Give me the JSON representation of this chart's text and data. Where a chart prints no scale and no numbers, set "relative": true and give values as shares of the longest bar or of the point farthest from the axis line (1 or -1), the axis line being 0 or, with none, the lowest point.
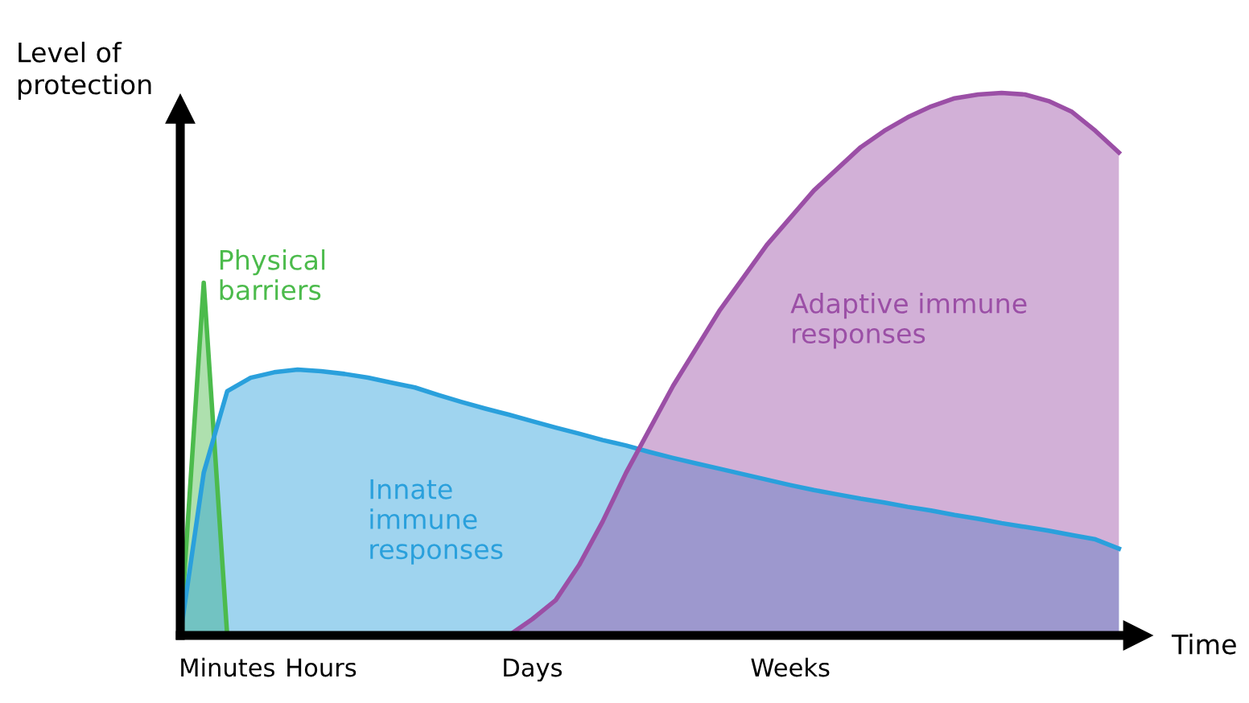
{
  "chart_data": {
    "type": "area",
    "relative": true,
    "xlabel": "Time",
    "ylabel": "Level of\nprotection",
    "categories": [
      null,
      null,
      "Minutes",
      null,
      null,
      null,
      "Hours",
      null,
      null,
      null,
      null,
      null,
      null,
      null,
      null,
      "Days",
      null,
      null,
      null,
      null,
      null,
      null,
      null,
      null,
      null,
      null,
      "Weeks",
      null,
      null,
      null,
      null,
      null,
      null,
      null,
      null,
      null,
      null,
      null,
      null,
      null,
      null
    ],
    "tick_labels": "x",
    "grid": false,
    "legend": false,
    "series": [
      {
        "name": "Physical\nbarriers",
        "color": "#4cbb4c",
        "values": [
          0,
          0.65,
          0,
          null,
          null,
          null,
          null,
          null,
          null,
          null,
          null,
          null,
          null,
          null,
          null,
          null,
          null,
          null,
          null,
          null,
          null,
          null,
          null,
          null,
          null,
          null,
          null,
          null,
          null,
          null,
          null,
          null,
          null,
          null,
          null,
          null,
          null,
          null,
          null,
          null,
          null
        ]
      },
      {
        "name": "Innate\nimmune\nresponses",
        "color": "#2aa0dc",
        "values": [
          0,
          0.3,
          0.45,
          0.475,
          0.485,
          0.49,
          0.487,
          0.482,
          0.475,
          0.466,
          0.457,
          0.443,
          0.43,
          0.418,
          0.407,
          0.395,
          0.383,
          0.372,
          0.36,
          0.35,
          0.338,
          0.327,
          0.317,
          0.307,
          0.297,
          0.287,
          0.277,
          0.268,
          0.26,
          0.252,
          0.245,
          0.237,
          0.23,
          0.222,
          0.215,
          0.207,
          0.2,
          0.193,
          0.185,
          0.177,
          0.16
        ]
      },
      {
        "name": "Adaptive immune\nresponses",
        "color": "#9b4fa6",
        "values": [
          null,
          null,
          null,
          null,
          null,
          null,
          null,
          null,
          null,
          null,
          null,
          null,
          null,
          null,
          0,
          0.03,
          0.065,
          0.13,
          0.21,
          0.3,
          0.38,
          0.46,
          0.53,
          0.6,
          0.66,
          0.72,
          0.77,
          0.82,
          0.86,
          0.9,
          0.93,
          0.955,
          0.975,
          0.99,
          0.997,
          1,
          0.997,
          0.985,
          0.965,
          0.93,
          0.89
        ]
      }
    ]
  }
}
